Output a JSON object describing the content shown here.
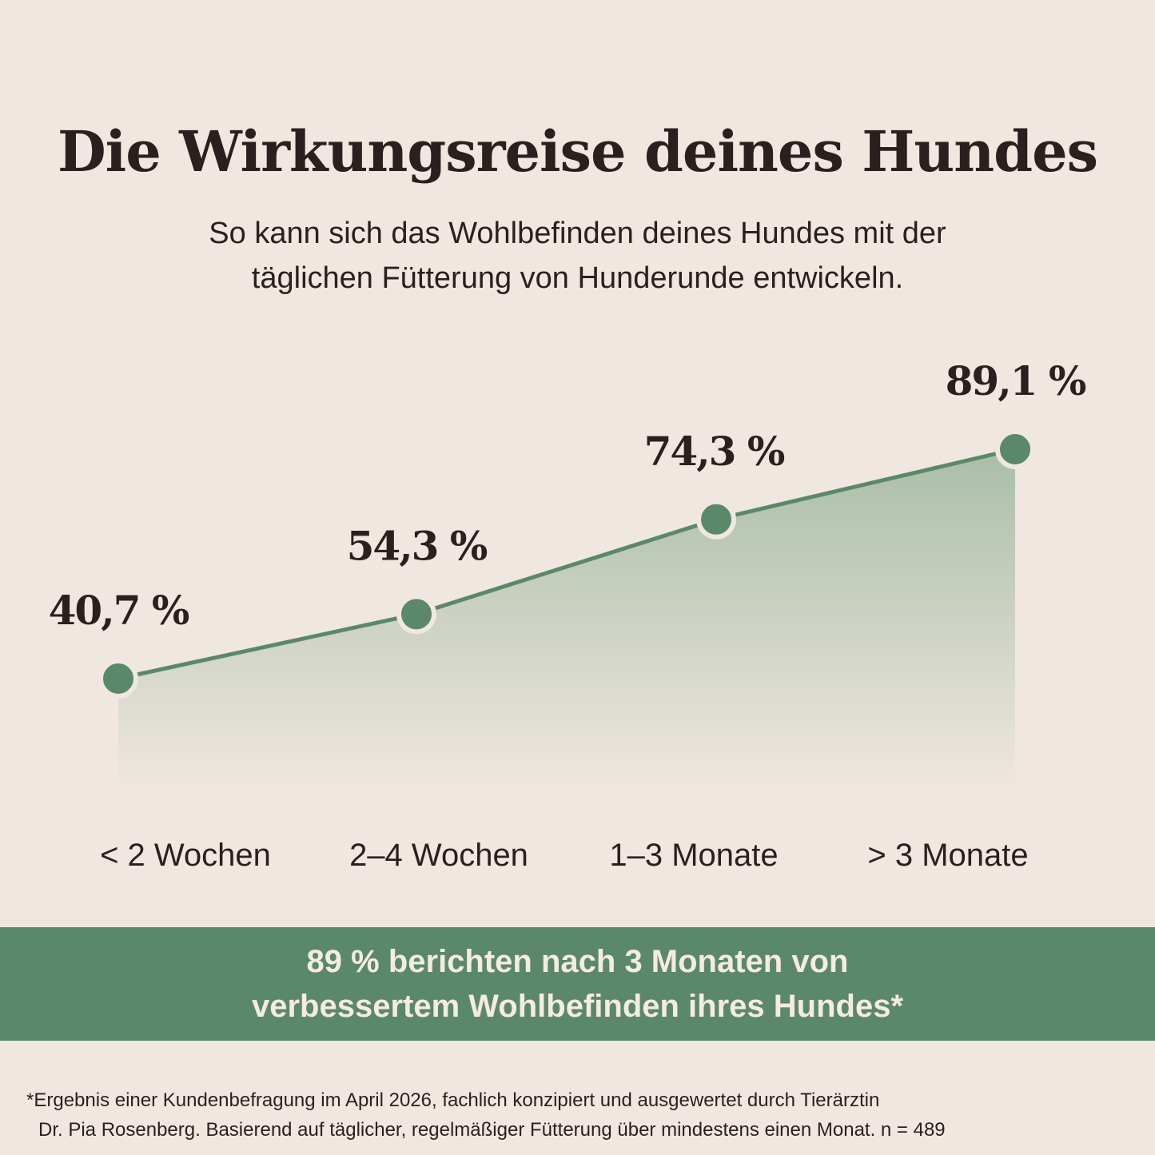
{
  "header": {
    "title": "Die Wirkungsreise deines Hundes",
    "subtitle_line1": "So kann sich das Wohlbefinden deines Hundes mit der",
    "subtitle_line2": "täglichen Fütterung von Hunderunde entwickeln."
  },
  "chart_data": {
    "type": "area",
    "categories": [
      "< 2 Wochen",
      "2–4 Wochen",
      "1–3 Monate",
      "> 3 Monate"
    ],
    "values": [
      40.7,
      54.3,
      74.3,
      89.1
    ],
    "value_labels": [
      "40,7 %",
      "54,3 %",
      "74,3 %",
      "89,1 %"
    ],
    "unit": "%",
    "grid": false,
    "legend": "none",
    "colors": {
      "line": "#5b8869",
      "marker": "#5b8869",
      "marker_ring": "#f0e7e1",
      "fill_top": "#a9bea6",
      "fill_bottom": "#f0e7e1"
    }
  },
  "banner": {
    "line1": "89 % berichten nach 3 Monaten von",
    "line2": "verbessertem Wohlbefinden ihres Hundes*",
    "background": "#5b8869",
    "text_color": "#f4ebe3"
  },
  "footnote": {
    "line1": "*Ergebnis einer Kundenbefragung im April 2026, fachlich konzipiert und ausgewertet durch Tierärztin",
    "line2": "Dr. Pia Rosenberg. Basierend auf täglicher, regelmäßiger Fütterung über mindestens einen Monat. n = 489"
  }
}
